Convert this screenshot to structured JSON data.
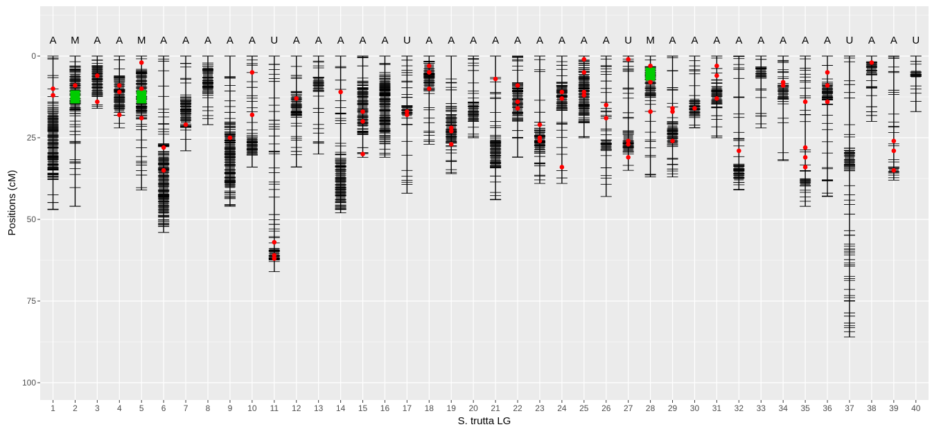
{
  "chart_data": {
    "type": "scatter",
    "xlabel": "S. trutta LG",
    "ylabel": "Positions (cM)",
    "y_ticks": [
      0,
      25,
      50,
      75,
      100
    ],
    "ylim": [
      -15,
      105
    ],
    "y_reversed": true,
    "grid": true,
    "colors": {
      "panel": "#ebebeb",
      "grid": "#ffffff",
      "marker": "#000000",
      "red_point": "#ff0000",
      "green_block": "#00cc00"
    },
    "linkage_groups": [
      {
        "lg": "1",
        "class": "A",
        "length": 47,
        "dense": [
          [
            14,
            38
          ]
        ],
        "red": [
          10,
          12
        ]
      },
      {
        "lg": "2",
        "class": "M",
        "length": 46,
        "dense": [
          [
            3,
            19
          ]
        ],
        "red": [
          9
        ],
        "green": [
          10.5,
          14.5
        ]
      },
      {
        "lg": "3",
        "class": "A",
        "length": 16,
        "dense": [
          [
            1,
            13
          ]
        ],
        "red": [
          6,
          14
        ]
      },
      {
        "lg": "4",
        "class": "A",
        "length": 22,
        "dense": [
          [
            6,
            19
          ]
        ],
        "red": [
          9,
          11,
          18
        ]
      },
      {
        "lg": "5",
        "class": "M",
        "length": 41,
        "dense": [
          [
            3,
            20
          ]
        ],
        "red": [
          2,
          10,
          19
        ],
        "green": [
          10.5,
          14.5
        ]
      },
      {
        "lg": "6",
        "class": "A",
        "length": 54,
        "dense": [
          [
            27,
            52
          ]
        ],
        "red": [
          28,
          35
        ]
      },
      {
        "lg": "7",
        "class": "A",
        "length": 29,
        "dense": [
          [
            12,
            22
          ]
        ],
        "red": [
          21
        ]
      },
      {
        "lg": "8",
        "class": "A",
        "length": 21,
        "dense": [
          [
            2,
            12
          ]
        ],
        "red": []
      },
      {
        "lg": "9",
        "class": "A",
        "length": 46,
        "dense": [
          [
            20,
            44
          ]
        ],
        "red": [
          25
        ]
      },
      {
        "lg": "10",
        "class": "A",
        "length": 34,
        "dense": [
          [
            24,
            31
          ]
        ],
        "red": [
          5,
          18
        ]
      },
      {
        "lg": "11",
        "class": "U",
        "length": 66,
        "dense": [
          [
            58,
            63
          ]
        ],
        "red": [
          57,
          61,
          62
        ]
      },
      {
        "lg": "12",
        "class": "A",
        "length": 34,
        "dense": [
          [
            11,
            19
          ]
        ],
        "red": [
          13
        ]
      },
      {
        "lg": "13",
        "class": "A",
        "length": 30,
        "dense": [
          [
            6,
            11
          ]
        ],
        "red": []
      },
      {
        "lg": "14",
        "class": "A",
        "length": 48,
        "dense": [
          [
            30,
            47
          ]
        ],
        "red": [
          11
        ]
      },
      {
        "lg": "15",
        "class": "A",
        "length": 31,
        "dense": [
          [
            8,
            24
          ]
        ],
        "red": [
          17,
          20,
          30
        ]
      },
      {
        "lg": "16",
        "class": "A",
        "length": 31,
        "dense": [
          [
            4,
            27
          ]
        ],
        "red": []
      },
      {
        "lg": "17",
        "class": "U",
        "length": 42,
        "dense": [
          [
            15,
            19
          ]
        ],
        "red": [
          17,
          18
        ]
      },
      {
        "lg": "18",
        "class": "A",
        "length": 27,
        "dense": [
          [
            1,
            11
          ]
        ],
        "red": [
          3,
          5,
          10
        ]
      },
      {
        "lg": "19",
        "class": "A",
        "length": 36,
        "dense": [
          [
            16,
            28
          ]
        ],
        "red": [
          22,
          23,
          27
        ]
      },
      {
        "lg": "20",
        "class": "A",
        "length": 25,
        "dense": [
          [
            14,
            21
          ]
        ],
        "red": []
      },
      {
        "lg": "21",
        "class": "A",
        "length": 44,
        "dense": [
          [
            24,
            35
          ]
        ],
        "red": [
          7
        ]
      },
      {
        "lg": "22",
        "class": "A",
        "length": 31,
        "dense": [
          [
            8,
            20
          ]
        ],
        "red": [
          9,
          14,
          16
        ]
      },
      {
        "lg": "23",
        "class": "A",
        "length": 39,
        "dense": [
          [
            22,
            30
          ]
        ],
        "red": [
          21,
          25,
          26
        ]
      },
      {
        "lg": "24",
        "class": "A",
        "length": 39,
        "dense": [
          [
            8,
            17
          ]
        ],
        "red": [
          11,
          13,
          34
        ]
      },
      {
        "lg": "25",
        "class": "A",
        "length": 25,
        "dense": [
          [
            3,
            21
          ]
        ],
        "red": [
          1,
          5,
          11,
          12
        ]
      },
      {
        "lg": "26",
        "class": "A",
        "length": 43,
        "dense": [
          [
            25,
            29
          ]
        ],
        "red": [
          15,
          19
        ]
      },
      {
        "lg": "27",
        "class": "U",
        "length": 35,
        "dense": [
          [
            23,
            30
          ]
        ],
        "red": [
          1,
          26,
          27,
          31
        ]
      },
      {
        "lg": "28",
        "class": "M",
        "length": 37,
        "dense": [
          [
            3,
            13
          ]
        ],
        "red": [
          3,
          8,
          17
        ],
        "green": [
          3.5,
          7.5
        ]
      },
      {
        "lg": "29",
        "class": "A",
        "length": 37,
        "dense": [
          [
            20,
            28
          ]
        ],
        "red": [
          16,
          17,
          26
        ]
      },
      {
        "lg": "30",
        "class": "A",
        "length": 22,
        "dense": [
          [
            12,
            19
          ]
        ],
        "red": [
          16
        ]
      },
      {
        "lg": "31",
        "class": "A",
        "length": 25,
        "dense": [
          [
            8,
            16
          ]
        ],
        "red": [
          3,
          6,
          13
        ]
      },
      {
        "lg": "32",
        "class": "A",
        "length": 41,
        "dense": [
          [
            33,
            39
          ]
        ],
        "red": [
          29
        ]
      },
      {
        "lg": "33",
        "class": "A",
        "length": 22,
        "dense": [
          [
            3,
            7
          ]
        ],
        "red": []
      },
      {
        "lg": "34",
        "class": "A",
        "length": 32,
        "dense": [
          [
            9,
            14
          ]
        ],
        "red": [
          8,
          9
        ]
      },
      {
        "lg": "35",
        "class": "A",
        "length": 46,
        "dense": [
          [
            37,
            40
          ]
        ],
        "red": [
          14,
          28,
          31,
          34
        ]
      },
      {
        "lg": "36",
        "class": "A",
        "length": 43,
        "dense": [
          [
            8,
            14
          ]
        ],
        "red": [
          5,
          9,
          14
        ]
      },
      {
        "lg": "37",
        "class": "U",
        "length": 86,
        "dense": [
          [
            28,
            34
          ]
        ],
        "red": []
      },
      {
        "lg": "38",
        "class": "A",
        "length": 20,
        "dense": [
          [
            1,
            6
          ]
        ],
        "red": [
          2
        ]
      },
      {
        "lg": "39",
        "class": "A",
        "length": 38,
        "dense": [
          [
            34,
            36
          ]
        ],
        "red": [
          26,
          29,
          35
        ]
      },
      {
        "lg": "40",
        "class": "U",
        "length": 17,
        "dense": [
          [
            4,
            7
          ]
        ],
        "red": []
      }
    ]
  }
}
